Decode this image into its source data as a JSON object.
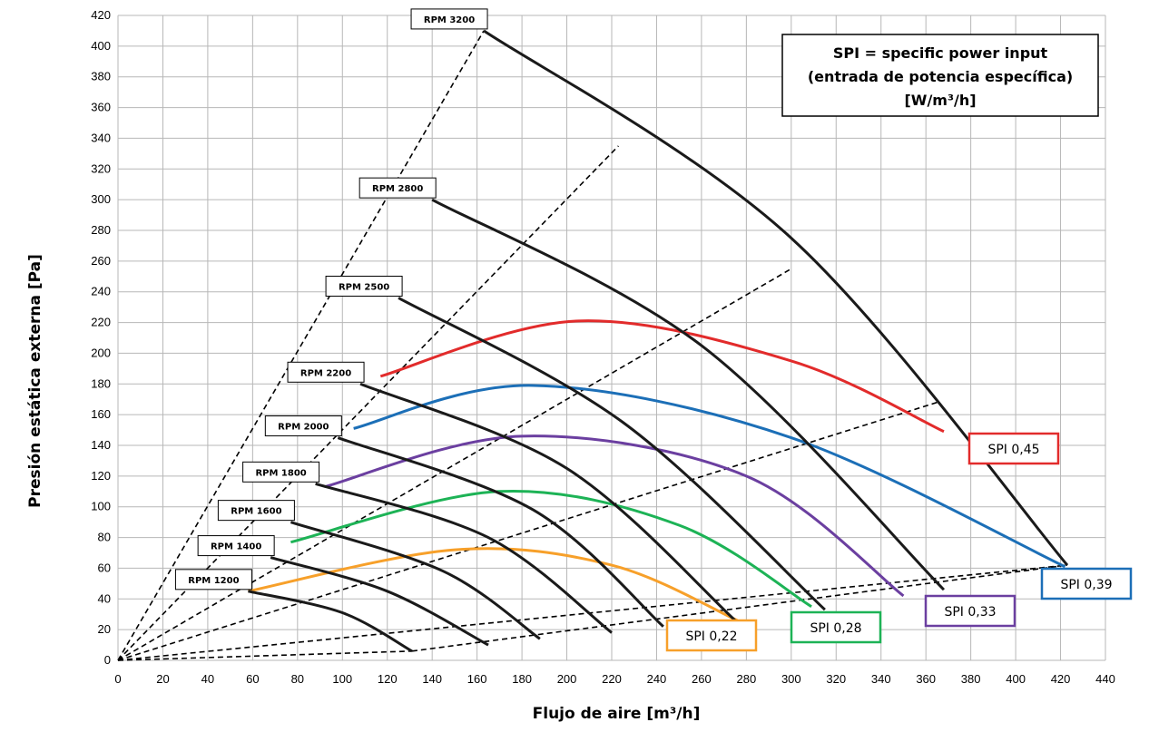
{
  "chart_data": {
    "type": "line",
    "xlabel": "Flujo de aire [m³/h]",
    "ylabel": "Presión estática externa [Pa]",
    "xlim": [
      0,
      440
    ],
    "ylim": [
      0,
      420
    ],
    "x_ticks": [
      0,
      20,
      40,
      60,
      80,
      100,
      120,
      140,
      160,
      180,
      200,
      220,
      240,
      260,
      280,
      300,
      320,
      340,
      360,
      380,
      400,
      420,
      440
    ],
    "y_ticks": [
      0,
      20,
      40,
      60,
      80,
      100,
      120,
      140,
      160,
      180,
      200,
      220,
      240,
      260,
      280,
      300,
      320,
      340,
      360,
      380,
      400,
      420
    ],
    "grid": true,
    "title_lines": [
      "SPI = specific power input",
      "(entrada de potencia específica)",
      "[W/m³/h]"
    ],
    "rpm_curves": [
      {
        "name": "RPM 1200",
        "points": [
          [
            58,
            45
          ],
          [
            100,
            31
          ],
          [
            131,
            6
          ]
        ]
      },
      {
        "name": "RPM 1400",
        "points": [
          [
            68,
            67
          ],
          [
            120,
            45
          ],
          [
            165,
            10
          ]
        ]
      },
      {
        "name": "RPM 1600",
        "points": [
          [
            77,
            90
          ],
          [
            145,
            58
          ],
          [
            188,
            14
          ]
        ]
      },
      {
        "name": "RPM 1800",
        "points": [
          [
            88,
            115
          ],
          [
            165,
            80
          ],
          [
            220,
            18
          ]
        ]
      },
      {
        "name": "RPM 2000",
        "points": [
          [
            98,
            145
          ],
          [
            185,
            98
          ],
          [
            243,
            22
          ]
        ]
      },
      {
        "name": "RPM 2200",
        "points": [
          [
            108,
            180
          ],
          [
            200,
            125
          ],
          [
            275,
            26
          ]
        ]
      },
      {
        "name": "RPM 2500",
        "points": [
          [
            125,
            236
          ],
          [
            225,
            155
          ],
          [
            315,
            33
          ]
        ]
      },
      {
        "name": "RPM 2800",
        "points": [
          [
            140,
            300
          ],
          [
            260,
            205
          ],
          [
            368,
            46
          ]
        ]
      },
      {
        "name": "RPM 3200",
        "points": [
          [
            163,
            410
          ],
          [
            300,
            275
          ],
          [
            423,
            62
          ]
        ]
      }
    ],
    "spi_curves": [
      {
        "name": "SPI 0,22",
        "color": "#f7a02a",
        "points": [
          [
            58,
            45
          ],
          [
            150,
            72
          ],
          [
            220,
            62
          ],
          [
            276,
            26
          ]
        ]
      },
      {
        "name": "SPI 0,28",
        "color": "#1db356",
        "points": [
          [
            77,
            77
          ],
          [
            170,
            110
          ],
          [
            250,
            88
          ],
          [
            309,
            35
          ]
        ]
      },
      {
        "name": "SPI 0,33",
        "color": "#6b3fa0",
        "points": [
          [
            92,
            113
          ],
          [
            180,
            146
          ],
          [
            280,
            120
          ],
          [
            350,
            42
          ]
        ]
      },
      {
        "name": "SPI 0,39",
        "color": "#1c6fb7",
        "points": [
          [
            105,
            151
          ],
          [
            185,
            179
          ],
          [
            300,
            145
          ],
          [
            422,
            61
          ]
        ]
      },
      {
        "name": "SPI 0,45",
        "color": "#e22b2b",
        "points": [
          [
            117,
            185
          ],
          [
            205,
            221
          ],
          [
            300,
            195
          ],
          [
            368,
            149
          ]
        ]
      }
    ],
    "dashed_lines": [
      {
        "points": [
          [
            0,
            0
          ],
          [
            163,
            410
          ]
        ]
      },
      {
        "points": [
          [
            0,
            0
          ],
          [
            223,
            335
          ]
        ]
      },
      {
        "points": [
          [
            0,
            0
          ],
          [
            300,
            255
          ]
        ]
      },
      {
        "points": [
          [
            0,
            0
          ],
          [
            365,
            168
          ]
        ]
      },
      {
        "points": [
          [
            0,
            0
          ],
          [
            423,
            62
          ]
        ]
      },
      {
        "points": [
          [
            0,
            0
          ],
          [
            131,
            6
          ]
        ]
      },
      {
        "points": [
          [
            131,
            6
          ],
          [
            423,
            62
          ]
        ]
      }
    ],
    "rpm_labels": [
      {
        "text": "RPM 3200",
        "anchor": [
          163,
          410
        ]
      },
      {
        "text": "RPM 2800",
        "anchor": [
          140,
          300
        ]
      },
      {
        "text": "RPM 2500",
        "anchor": [
          125,
          236
        ]
      },
      {
        "text": "RPM 2200",
        "anchor": [
          108,
          180
        ]
      },
      {
        "text": "RPM 2000",
        "anchor": [
          98,
          145
        ]
      },
      {
        "text": "RPM 1800",
        "anchor": [
          88,
          115
        ]
      },
      {
        "text": "RPM 1600",
        "anchor": [
          77,
          90
        ]
      },
      {
        "text": "RPM 1400",
        "anchor": [
          68,
          67
        ]
      },
      {
        "text": "RPM 1200",
        "anchor": [
          58,
          45
        ]
      }
    ],
    "spi_labels": [
      {
        "text": "SPI 0,45",
        "color": "#e22b2b"
      },
      {
        "text": "SPI 0,39",
        "color": "#1c6fb7"
      },
      {
        "text": "SPI 0,33",
        "color": "#6b3fa0"
      },
      {
        "text": "SPI 0,28",
        "color": "#1db356"
      },
      {
        "text": "SPI 0,22",
        "color": "#f7a02a"
      }
    ]
  }
}
